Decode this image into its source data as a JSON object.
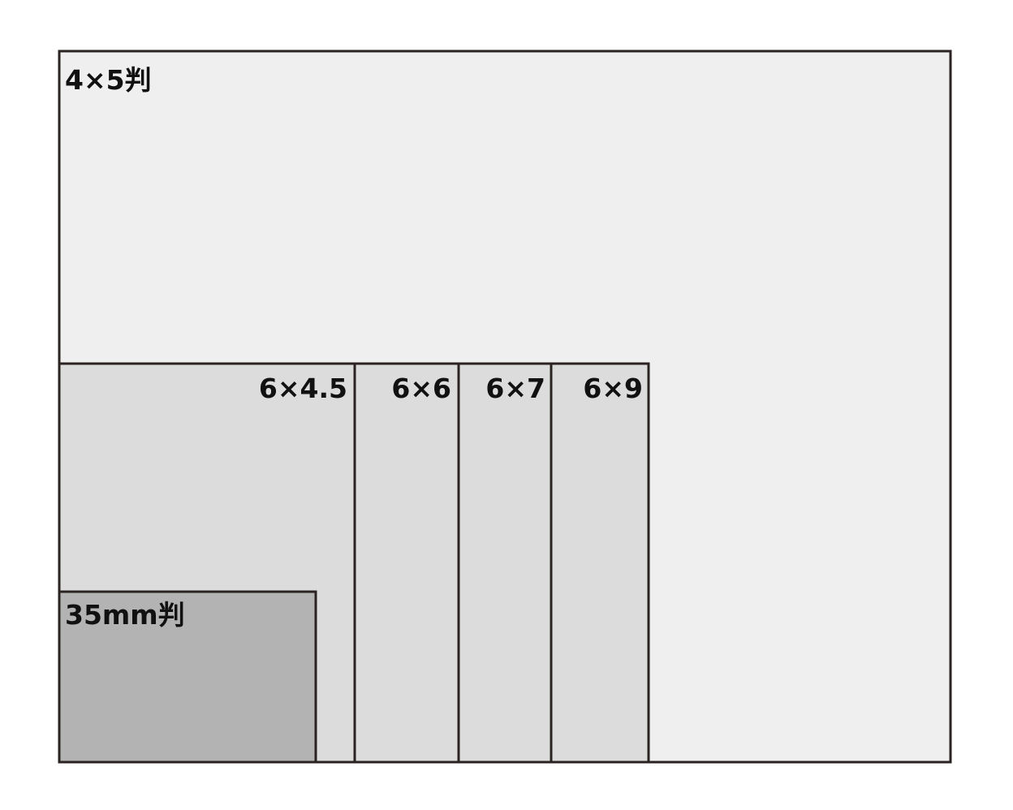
{
  "colors": {
    "outline": "#2b2322",
    "large_format": "#efefef",
    "medium_format": "#dcdcdc",
    "small_format": "#b3b3b4"
  },
  "formats": {
    "large": {
      "label": "4×5判"
    },
    "medium": [
      {
        "label": "6×4.5"
      },
      {
        "label": "6×6"
      },
      {
        "label": "6×7"
      },
      {
        "label": "6×9"
      }
    ],
    "small": {
      "label": "35mm判"
    }
  }
}
